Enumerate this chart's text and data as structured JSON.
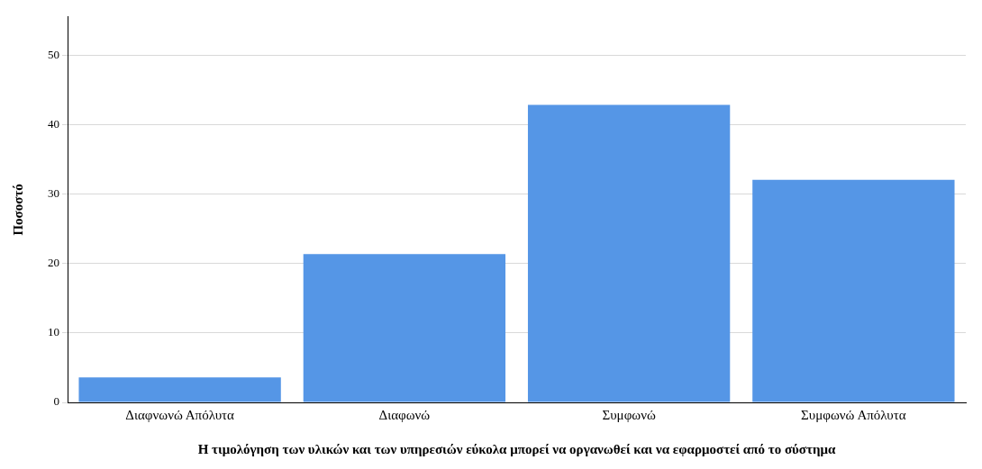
{
  "chart_data": {
    "type": "bar",
    "xlabel": "Η τιμολόγηση των υλικών και των υπηρεσιών εύκολα μπορεί να οργανωθεί και να εφαρμοστεί από το σύστημα",
    "ylabel": "Ποσοστό",
    "categories": [
      "Διαφνωνώ Απόλυτα",
      "Διαφωνώ",
      "Συμφωνώ",
      "Συμφωνώ Απόλυτα"
    ],
    "values": [
      3.6,
      21.4,
      42.9,
      32.1
    ],
    "color": "#5596e6",
    "ylim": [
      0,
      55.6
    ],
    "yticks": [
      0,
      10,
      20,
      30,
      40,
      50
    ],
    "grid": "y",
    "legend": false
  }
}
